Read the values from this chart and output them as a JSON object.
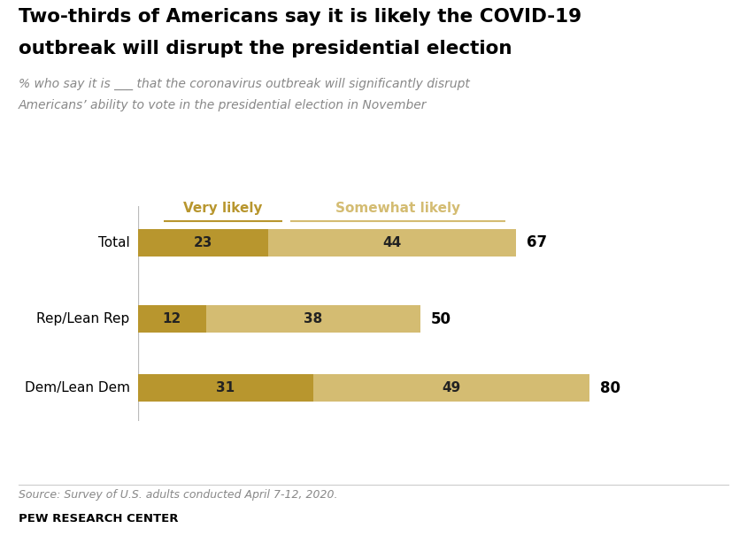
{
  "title_line1": "Two-thirds of Americans say it is likely the COVID-19",
  "title_line2": "outbreak will disrupt the presidential election",
  "subtitle_line1": "% who say it is ___ that the coronavirus outbreak will significantly disrupt",
  "subtitle_line2": "Americans’ ability to vote in the presidential election in November",
  "categories": [
    "Total",
    "Rep/Lean Rep",
    "Dem/Lean Dem"
  ],
  "very_likely": [
    23,
    12,
    31
  ],
  "somewhat_likely": [
    44,
    38,
    49
  ],
  "totals": [
    67,
    50,
    80
  ],
  "color_very": "#B8962E",
  "color_somewhat": "#D4BC72",
  "legend_very": "Very likely",
  "legend_somewhat": "Somewhat likely",
  "source": "Source: Survey of U.S. adults conducted April 7-12, 2020.",
  "branding": "PEW RESEARCH CENTER",
  "bg_color": "#FFFFFF",
  "bar_height": 0.38,
  "xlim": [
    0,
    92
  ]
}
